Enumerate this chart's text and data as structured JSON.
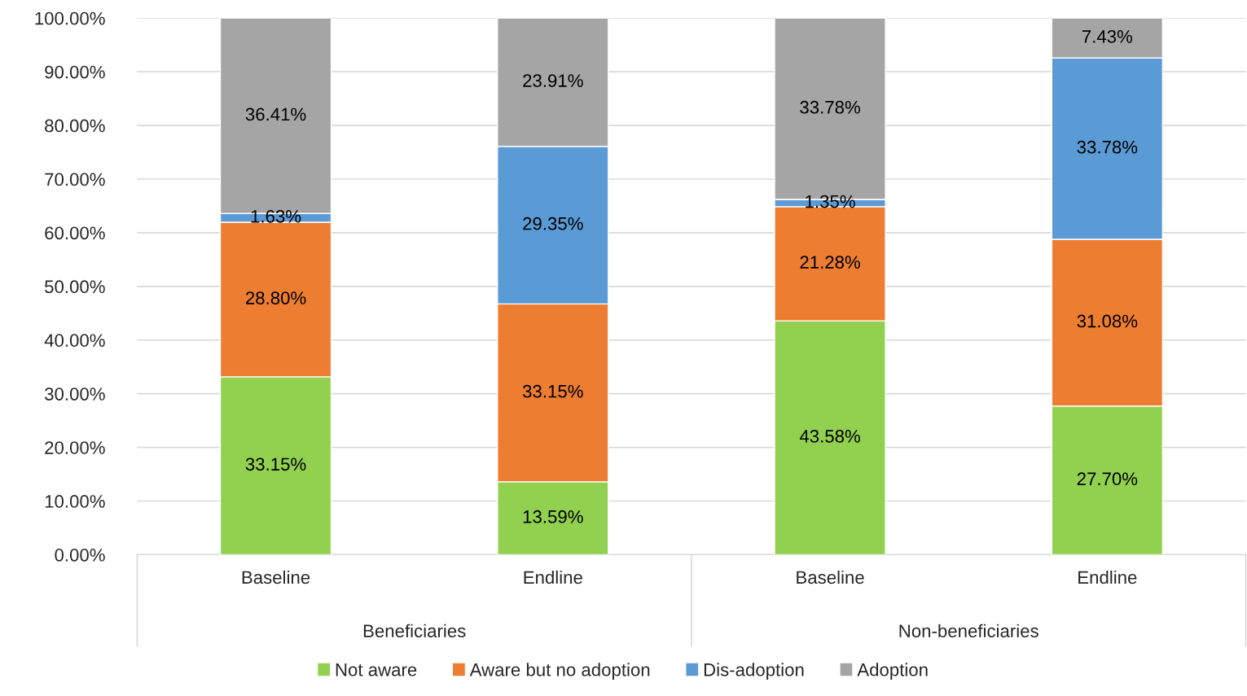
{
  "chart_data": {
    "type": "bar",
    "stacked": true,
    "categories": [
      "Baseline",
      "Endline",
      "Baseline",
      "Endline"
    ],
    "series": [
      {
        "name": "Not aware",
        "color": "#92d050",
        "values": [
          33.15,
          13.59,
          43.58,
          27.7
        ],
        "value_labels": [
          "33.15%",
          "13.59%",
          "43.58%",
          "27.70%"
        ]
      },
      {
        "name": "Aware but no adoption",
        "color": "#ed7d31",
        "values": [
          28.8,
          33.15,
          21.28,
          31.08
        ],
        "value_labels": [
          "28.80%",
          "33.15%",
          "21.28%",
          "31.08%"
        ]
      },
      {
        "name": "Dis-adoption",
        "color": "#5b9bd5",
        "values": [
          1.63,
          29.35,
          1.35,
          33.78
        ],
        "value_labels": [
          "1.63%",
          "29.35%",
          "1.35%",
          "33.78%"
        ]
      },
      {
        "name": "Adoption",
        "color": "#a5a5a5",
        "values": [
          36.41,
          23.91,
          33.78,
          7.43
        ],
        "value_labels": [
          "36.41%",
          "23.91%",
          "33.78%",
          "7.43%"
        ]
      }
    ],
    "ylim": [
      0,
      100
    ],
    "yticks": [
      {
        "value": 0,
        "label": "0.00%"
      },
      {
        "value": 10,
        "label": "10.00%"
      },
      {
        "value": 20,
        "label": "20.00%"
      },
      {
        "value": 30,
        "label": "30.00%"
      },
      {
        "value": 40,
        "label": "40.00%"
      },
      {
        "value": 50,
        "label": "50.00%"
      },
      {
        "value": 60,
        "label": "60.00%"
      },
      {
        "value": 70,
        "label": "70.00%"
      },
      {
        "value": 80,
        "label": "80.00%"
      },
      {
        "value": 90,
        "label": "90.00%"
      },
      {
        "value": 100,
        "label": "100.00%"
      }
    ],
    "annotations": [
      "Beneficiaries",
      "Non-beneficiaries"
    ],
    "grid": "y",
    "legend": "bottom"
  }
}
